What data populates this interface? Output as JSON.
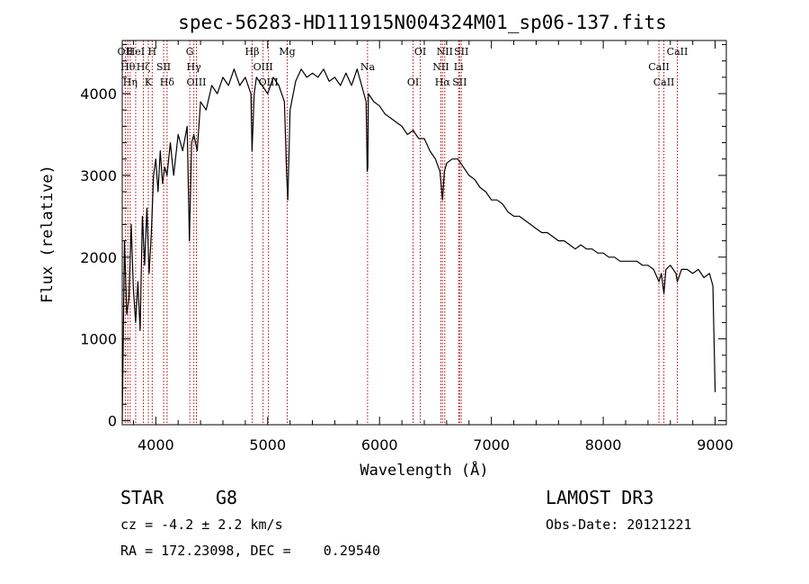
{
  "chart_data": {
    "type": "line",
    "title": "spec-56283-HD111915N004324M01_sp06-137.fits",
    "xlabel": "Wavelength (Å)",
    "ylabel": "Flux (relative)",
    "xlim": [
      3700,
      9100
    ],
    "ylim": [
      -50,
      4650
    ],
    "xticks": [
      4000,
      5000,
      6000,
      7000,
      8000,
      9000
    ],
    "xtick_labels": [
      "4000",
      "5000",
      "6000",
      "7000",
      "8000",
      "9000"
    ],
    "yticks": [
      0,
      1000,
      2000,
      3000,
      4000
    ],
    "ytick_labels": [
      "0",
      "1000",
      "2000",
      "3000",
      "4000"
    ],
    "series": [
      {
        "name": "spectrum",
        "x": [
          3700,
          3720,
          3740,
          3760,
          3780,
          3800,
          3820,
          3840,
          3860,
          3880,
          3900,
          3920,
          3940,
          3960,
          3980,
          4000,
          4020,
          4040,
          4060,
          4080,
          4100,
          4130,
          4160,
          4200,
          4240,
          4280,
          4300,
          4320,
          4340,
          4370,
          4400,
          4450,
          4500,
          4550,
          4600,
          4650,
          4700,
          4750,
          4800,
          4850,
          4860,
          4880,
          4900,
          4950,
          5000,
          5050,
          5100,
          5150,
          5170,
          5180,
          5200,
          5250,
          5300,
          5350,
          5400,
          5450,
          5500,
          5550,
          5600,
          5650,
          5700,
          5750,
          5800,
          5850,
          5880,
          5890,
          5895,
          5900,
          5950,
          6000,
          6050,
          6100,
          6150,
          6200,
          6250,
          6300,
          6350,
          6400,
          6450,
          6500,
          6540,
          6563,
          6580,
          6600,
          6650,
          6700,
          6750,
          6800,
          6850,
          6900,
          6950,
          7000,
          7050,
          7100,
          7150,
          7200,
          7250,
          7300,
          7350,
          7400,
          7450,
          7500,
          7550,
          7600,
          7650,
          7700,
          7750,
          7800,
          7850,
          7900,
          7950,
          8000,
          8050,
          8100,
          8150,
          8200,
          8250,
          8300,
          8350,
          8400,
          8450,
          8498,
          8520,
          8542,
          8560,
          8600,
          8650,
          8662,
          8700,
          8750,
          8800,
          8850,
          8900,
          8950,
          8980,
          9000
        ],
        "y": [
          0,
          2200,
          1300,
          1500,
          2400,
          1600,
          1200,
          1700,
          1100,
          2500,
          1900,
          2600,
          1800,
          2300,
          3000,
          3200,
          2800,
          3300,
          2900,
          3100,
          3000,
          3400,
          3000,
          3500,
          3300,
          3600,
          2200,
          3400,
          3500,
          3300,
          3900,
          3800,
          4100,
          4000,
          4200,
          4100,
          4300,
          4100,
          4200,
          4000,
          3300,
          4000,
          4200,
          4100,
          4000,
          4200,
          4100,
          3900,
          3000,
          2700,
          3800,
          4150,
          4300,
          4200,
          4250,
          4200,
          4300,
          4150,
          4200,
          4100,
          4250,
          4100,
          4300,
          4050,
          3900,
          3050,
          3100,
          4000,
          3900,
          3850,
          3750,
          3700,
          3650,
          3600,
          3500,
          3550,
          3450,
          3450,
          3300,
          3200,
          3050,
          2700,
          3050,
          3150,
          3200,
          3200,
          3100,
          3000,
          2950,
          2850,
          2800,
          2700,
          2700,
          2650,
          2550,
          2500,
          2500,
          2450,
          2400,
          2350,
          2300,
          2300,
          2250,
          2200,
          2200,
          2150,
          2100,
          2150,
          2100,
          2100,
          2050,
          2050,
          2000,
          2000,
          1950,
          1950,
          1950,
          1950,
          1900,
          1900,
          1850,
          1700,
          1800,
          1550,
          1850,
          1900,
          1800,
          1700,
          1850,
          1850,
          1800,
          1850,
          1750,
          1800,
          1650,
          350
        ]
      }
    ],
    "lines": [
      {
        "wave": 3727,
        "label": "OII"
      },
      {
        "wave": 3750,
        "label": "Hθ"
      },
      {
        "wave": 3771,
        "label": "Hη"
      },
      {
        "wave": 3820,
        "label": "HeI"
      },
      {
        "wave": 3889,
        "label": "Hζ"
      },
      {
        "wave": 3933,
        "label": "K"
      },
      {
        "wave": 3968,
        "label": "H"
      },
      {
        "wave": 4070,
        "label": "SII"
      },
      {
        "wave": 4101,
        "label": "Hδ"
      },
      {
        "wave": 4304,
        "label": "G"
      },
      {
        "wave": 4340,
        "label": "Hγ"
      },
      {
        "wave": 4363,
        "label": "OIII"
      },
      {
        "wave": 4861,
        "label": "Hβ"
      },
      {
        "wave": 4959,
        "label": "OIII"
      },
      {
        "wave": 5007,
        "label": "OIII"
      },
      {
        "wave": 5175,
        "label": "Mg"
      },
      {
        "wave": 5893,
        "label": "Na"
      },
      {
        "wave": 6300,
        "label": "OI"
      },
      {
        "wave": 6364,
        "label": "OI"
      },
      {
        "wave": 6548,
        "label": "NII"
      },
      {
        "wave": 6563,
        "label": "Hα"
      },
      {
        "wave": 6583,
        "label": "NII"
      },
      {
        "wave": 6707,
        "label": "Li"
      },
      {
        "wave": 6716,
        "label": "SII"
      },
      {
        "wave": 6731,
        "label": "SII"
      },
      {
        "wave": 8498,
        "label": "CaII"
      },
      {
        "wave": 8542,
        "label": "CaII"
      },
      {
        "wave": 8662,
        "label": "CaII"
      }
    ],
    "colors": {
      "spectrum": "#000000",
      "lines": "#c00000",
      "axes": "#000000"
    }
  },
  "info": {
    "object_class": "STAR",
    "subclass": "G8",
    "survey": "LAMOST DR3",
    "redshift": "cz = -4.2 ± 2.2 km/s",
    "obs_date": "Obs-Date: 20121221",
    "coords": "RA = 172.23098, DEC =    0.29540"
  }
}
